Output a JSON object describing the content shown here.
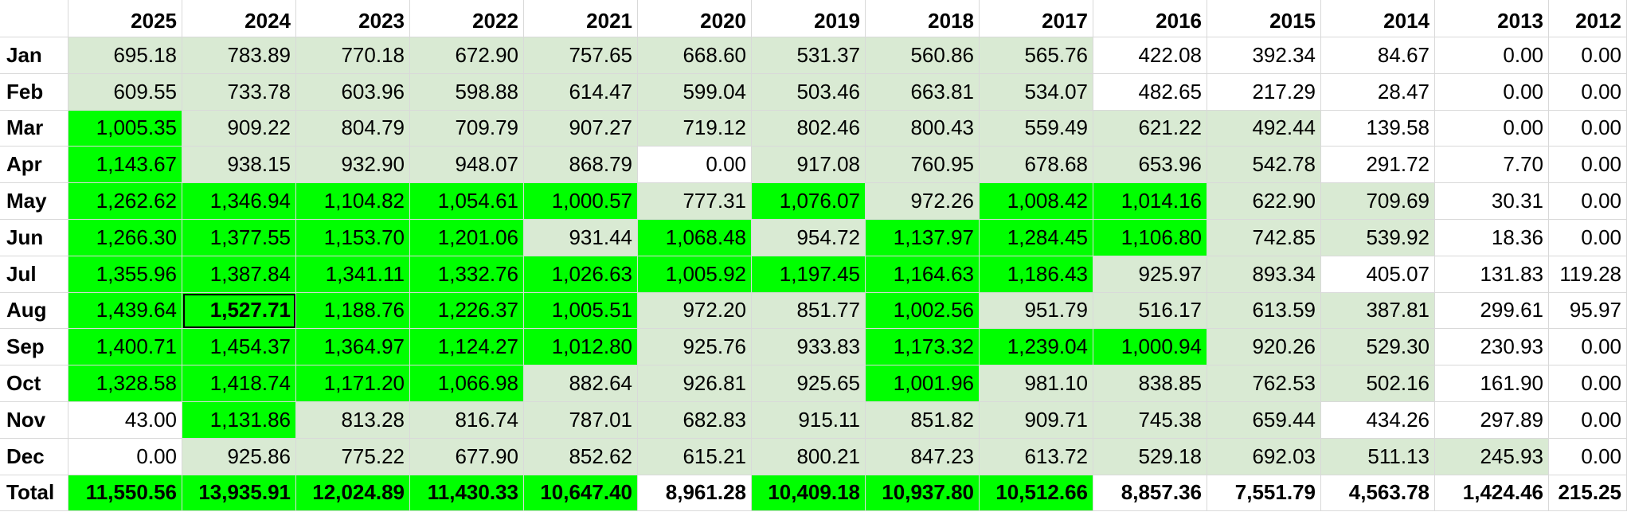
{
  "columns": [
    "2025",
    "2024",
    "2023",
    "2022",
    "2021",
    "2020",
    "2019",
    "2018",
    "2017",
    "2016",
    "2015",
    "2014",
    "2013",
    "2012"
  ],
  "colors": {
    "light_green": "#d9ead3",
    "bright_green": "#00ff00",
    "white": "#ffffff"
  },
  "rows": [
    {
      "label": "Jan",
      "values": [
        "695.18",
        "783.89",
        "770.18",
        "672.90",
        "757.65",
        "668.60",
        "531.37",
        "560.86",
        "565.76",
        "422.08",
        "392.34",
        "84.67",
        "0.00",
        "0.00"
      ],
      "fills": "gggggggggwwwww"
    },
    {
      "label": "Feb",
      "values": [
        "609.55",
        "733.78",
        "603.96",
        "598.88",
        "614.47",
        "599.04",
        "503.46",
        "663.81",
        "534.07",
        "482.65",
        "217.29",
        "28.47",
        "0.00",
        "0.00"
      ],
      "fills": "gggggggggwwwww"
    },
    {
      "label": "Mar",
      "values": [
        "1,005.35",
        "909.22",
        "804.79",
        "709.79",
        "907.27",
        "719.12",
        "802.46",
        "800.43",
        "559.49",
        "621.22",
        "492.44",
        "139.58",
        "0.00",
        "0.00"
      ],
      "fills": "Gggggggggggwww"
    },
    {
      "label": "Apr",
      "values": [
        "1,143.67",
        "938.15",
        "932.90",
        "948.07",
        "868.79",
        "0.00",
        "917.08",
        "760.95",
        "678.68",
        "653.96",
        "542.78",
        "291.72",
        "7.70",
        "0.00"
      ],
      "fills": "Gggggwgggggwww"
    },
    {
      "label": "May",
      "values": [
        "1,262.62",
        "1,346.94",
        "1,104.82",
        "1,054.61",
        "1,000.57",
        "777.31",
        "1,076.07",
        "972.26",
        "1,008.42",
        "1,014.16",
        "622.90",
        "709.69",
        "30.31",
        "0.00"
      ],
      "fills": "GGGGGgGgGGggww"
    },
    {
      "label": "Jun",
      "values": [
        "1,266.30",
        "1,377.55",
        "1,153.70",
        "1,201.06",
        "931.44",
        "1,068.48",
        "954.72",
        "1,137.97",
        "1,284.45",
        "1,106.80",
        "742.85",
        "539.92",
        "18.36",
        "0.00"
      ],
      "fills": "GGGGgGgGGGggww"
    },
    {
      "label": "Jul",
      "values": [
        "1,355.96",
        "1,387.84",
        "1,341.11",
        "1,332.76",
        "1,026.63",
        "1,005.92",
        "1,197.45",
        "1,164.63",
        "1,186.43",
        "925.97",
        "893.34",
        "405.07",
        "131.83",
        "119.28"
      ],
      "fills": "GGGGGGGGGggwww"
    },
    {
      "label": "Aug",
      "values": [
        "1,439.64",
        "1,527.71",
        "1,188.76",
        "1,226.37",
        "1,005.51",
        "972.20",
        "851.77",
        "1,002.56",
        "951.79",
        "516.17",
        "613.59",
        "387.81",
        "299.61",
        "95.97"
      ],
      "fills": "GGGGGggGggggww"
    },
    {
      "label": "Sep",
      "values": [
        "1,400.71",
        "1,454.37",
        "1,364.97",
        "1,124.27",
        "1,012.80",
        "925.76",
        "933.83",
        "1,173.32",
        "1,239.04",
        "1,000.94",
        "920.26",
        "529.30",
        "230.93",
        "0.00"
      ],
      "fills": "GGGGGggGGGggww"
    },
    {
      "label": "Oct",
      "values": [
        "1,328.58",
        "1,418.74",
        "1,171.20",
        "1,066.98",
        "882.64",
        "926.81",
        "925.65",
        "1,001.96",
        "981.10",
        "838.85",
        "762.53",
        "502.16",
        "161.90",
        "0.00"
      ],
      "fills": "GGGGgggGggggww"
    },
    {
      "label": "Nov",
      "values": [
        "43.00",
        "1,131.86",
        "813.28",
        "816.74",
        "787.01",
        "682.83",
        "915.11",
        "851.82",
        "909.71",
        "745.38",
        "659.44",
        "434.26",
        "297.89",
        "0.00"
      ],
      "fills": "wGgggggggggwww"
    },
    {
      "label": "Dec",
      "values": [
        "0.00",
        "925.86",
        "775.22",
        "677.90",
        "852.62",
        "615.21",
        "800.21",
        "847.23",
        "613.72",
        "529.18",
        "692.03",
        "511.13",
        "245.93",
        "0.00"
      ],
      "fills": "wggggggggggggw"
    },
    {
      "label": "Total",
      "values": [
        "11,550.56",
        "13,935.91",
        "12,024.89",
        "11,430.33",
        "10,647.40",
        "8,961.28",
        "10,409.18",
        "10,937.80",
        "10,512.66",
        "8,857.36",
        "7,551.79",
        "4,563.78",
        "1,424.46",
        "215.25"
      ],
      "fills": "GGGGGwGGGwwwww",
      "total": true
    }
  ],
  "selected_cell": {
    "row": "Aug",
    "column": "2024"
  }
}
